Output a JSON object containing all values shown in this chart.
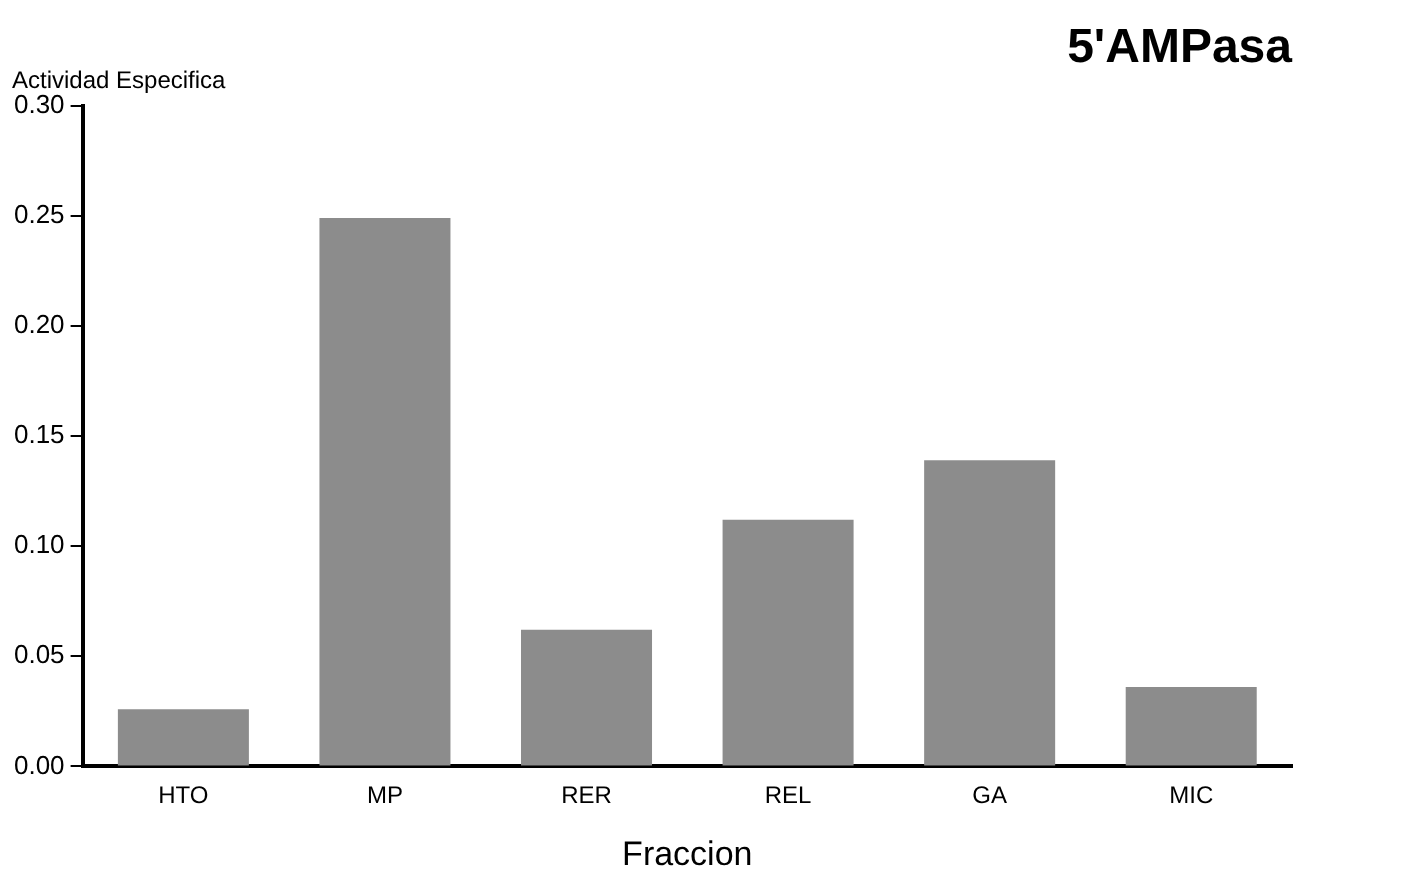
{
  "chart_data": {
    "type": "bar",
    "title": "5'AMPasa",
    "ylabel": "Actividad Especifica",
    "xlabel": "Fraccion",
    "categories": [
      "HTO",
      "MP",
      "RER",
      "REL",
      "GA",
      "MIC"
    ],
    "values": [
      0.026,
      0.249,
      0.062,
      0.112,
      0.139,
      0.036
    ],
    "color": "#8c8c8c",
    "ylim": [
      0,
      0.3
    ],
    "yticks": [
      {
        "value": 0,
        "label": "0.00"
      },
      {
        "value": 0.05,
        "label": "0.05"
      },
      {
        "value": 0.1,
        "label": "0.10"
      },
      {
        "value": 0.15,
        "label": "0.15"
      },
      {
        "value": 0.2,
        "label": "0.20"
      },
      {
        "value": 0.25,
        "label": "0.25"
      },
      {
        "value": 0.3,
        "label": "0.30"
      }
    ],
    "grid": false,
    "legend": false
  }
}
